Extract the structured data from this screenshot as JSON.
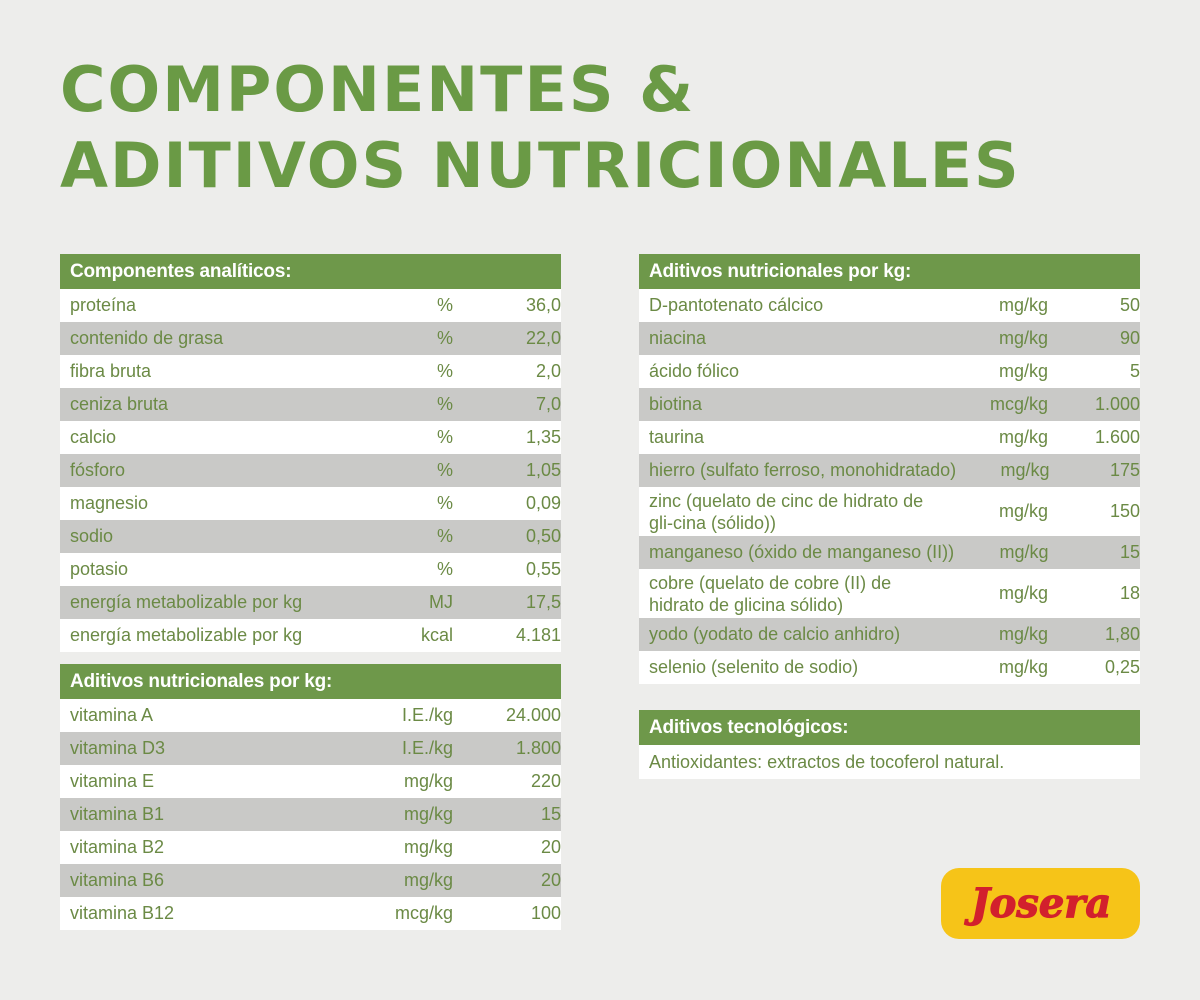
{
  "title": {
    "line1": "Componentes &",
    "line2": "Aditivos nutricionales"
  },
  "analytical": {
    "heading": "Componentes analíticos:",
    "rows": [
      {
        "name": "proteína",
        "unit": "%",
        "value": "36,0"
      },
      {
        "name": "contenido de grasa",
        "unit": "%",
        "value": "22,0"
      },
      {
        "name": "fibra bruta",
        "unit": "%",
        "value": "2,0"
      },
      {
        "name": "ceniza bruta",
        "unit": "%",
        "value": "7,0"
      },
      {
        "name": "calcio",
        "unit": "%",
        "value": "1,35"
      },
      {
        "name": "fósforo",
        "unit": "%",
        "value": "1,05"
      },
      {
        "name": "magnesio",
        "unit": "%",
        "value": "0,09"
      },
      {
        "name": "sodio",
        "unit": "%",
        "value": "0,50"
      },
      {
        "name": "potasio",
        "unit": "%",
        "value": "0,55"
      },
      {
        "name": "energía metabolizable por kg",
        "unit": "MJ",
        "value": "17,5"
      },
      {
        "name": "energía metabolizable por kg",
        "unit": "kcal",
        "value": "4.181"
      }
    ]
  },
  "vitamins": {
    "heading": "Aditivos nutricionales por kg:",
    "rows": [
      {
        "name": "vitamina A",
        "unit": "I.E./kg",
        "value": "24.000"
      },
      {
        "name": "vitamina D3",
        "unit": "I.E./kg",
        "value": "1.800"
      },
      {
        "name": "vitamina E",
        "unit": "mg/kg",
        "value": "220"
      },
      {
        "name": "vitamina B1",
        "unit": "mg/kg",
        "value": "15"
      },
      {
        "name": "vitamina B2",
        "unit": "mg/kg",
        "value": "20"
      },
      {
        "name": "vitamina B6",
        "unit": "mg/kg",
        "value": "20"
      },
      {
        "name": "vitamina B12",
        "unit": "mcg/kg",
        "value": "100"
      }
    ]
  },
  "additives": {
    "heading": "Aditivos nutricionales por kg:",
    "rows": [
      {
        "name": "D-pantotenato cálcico",
        "unit": "mg/kg",
        "value": "50"
      },
      {
        "name": "niacina",
        "unit": "mg/kg",
        "value": "90"
      },
      {
        "name": "ácido fólico",
        "unit": "mg/kg",
        "value": "5"
      },
      {
        "name": "biotina",
        "unit": "mcg/kg",
        "value": "1.000"
      },
      {
        "name": "taurina",
        "unit": "mg/kg",
        "value": "1.600"
      },
      {
        "name": "hierro (sulfato ferroso, monohidratado)",
        "unit": "mg/kg",
        "value": "175"
      },
      {
        "name": "zinc (quelato de cinc de hidrato de gli-cina (sólido))",
        "unit": "mg/kg",
        "value": "150"
      },
      {
        "name": "manganeso (óxido de manganeso (II))",
        "unit": "mg/kg",
        "value": "15"
      },
      {
        "name": "cobre (quelato de cobre (II) de hidrato de glicina sólido)",
        "unit": "mg/kg",
        "value": "18"
      },
      {
        "name": "yodo (yodato de calcio anhidro)",
        "unit": "mg/kg",
        "value": "1,80"
      },
      {
        "name": "selenio (selenito de sodio)",
        "unit": "mg/kg",
        "value": "0,25"
      }
    ]
  },
  "technological": {
    "heading": "Aditivos tecnológicos:",
    "text": "Antioxidantes: extractos de tocoferol natural."
  },
  "logo": {
    "text": "Josera",
    "background": "#f6c418",
    "text_color": "#d2202d"
  },
  "colors": {
    "accent": "#6e984a",
    "text": "#6b8a45",
    "stripe": "#c9c9c7"
  }
}
